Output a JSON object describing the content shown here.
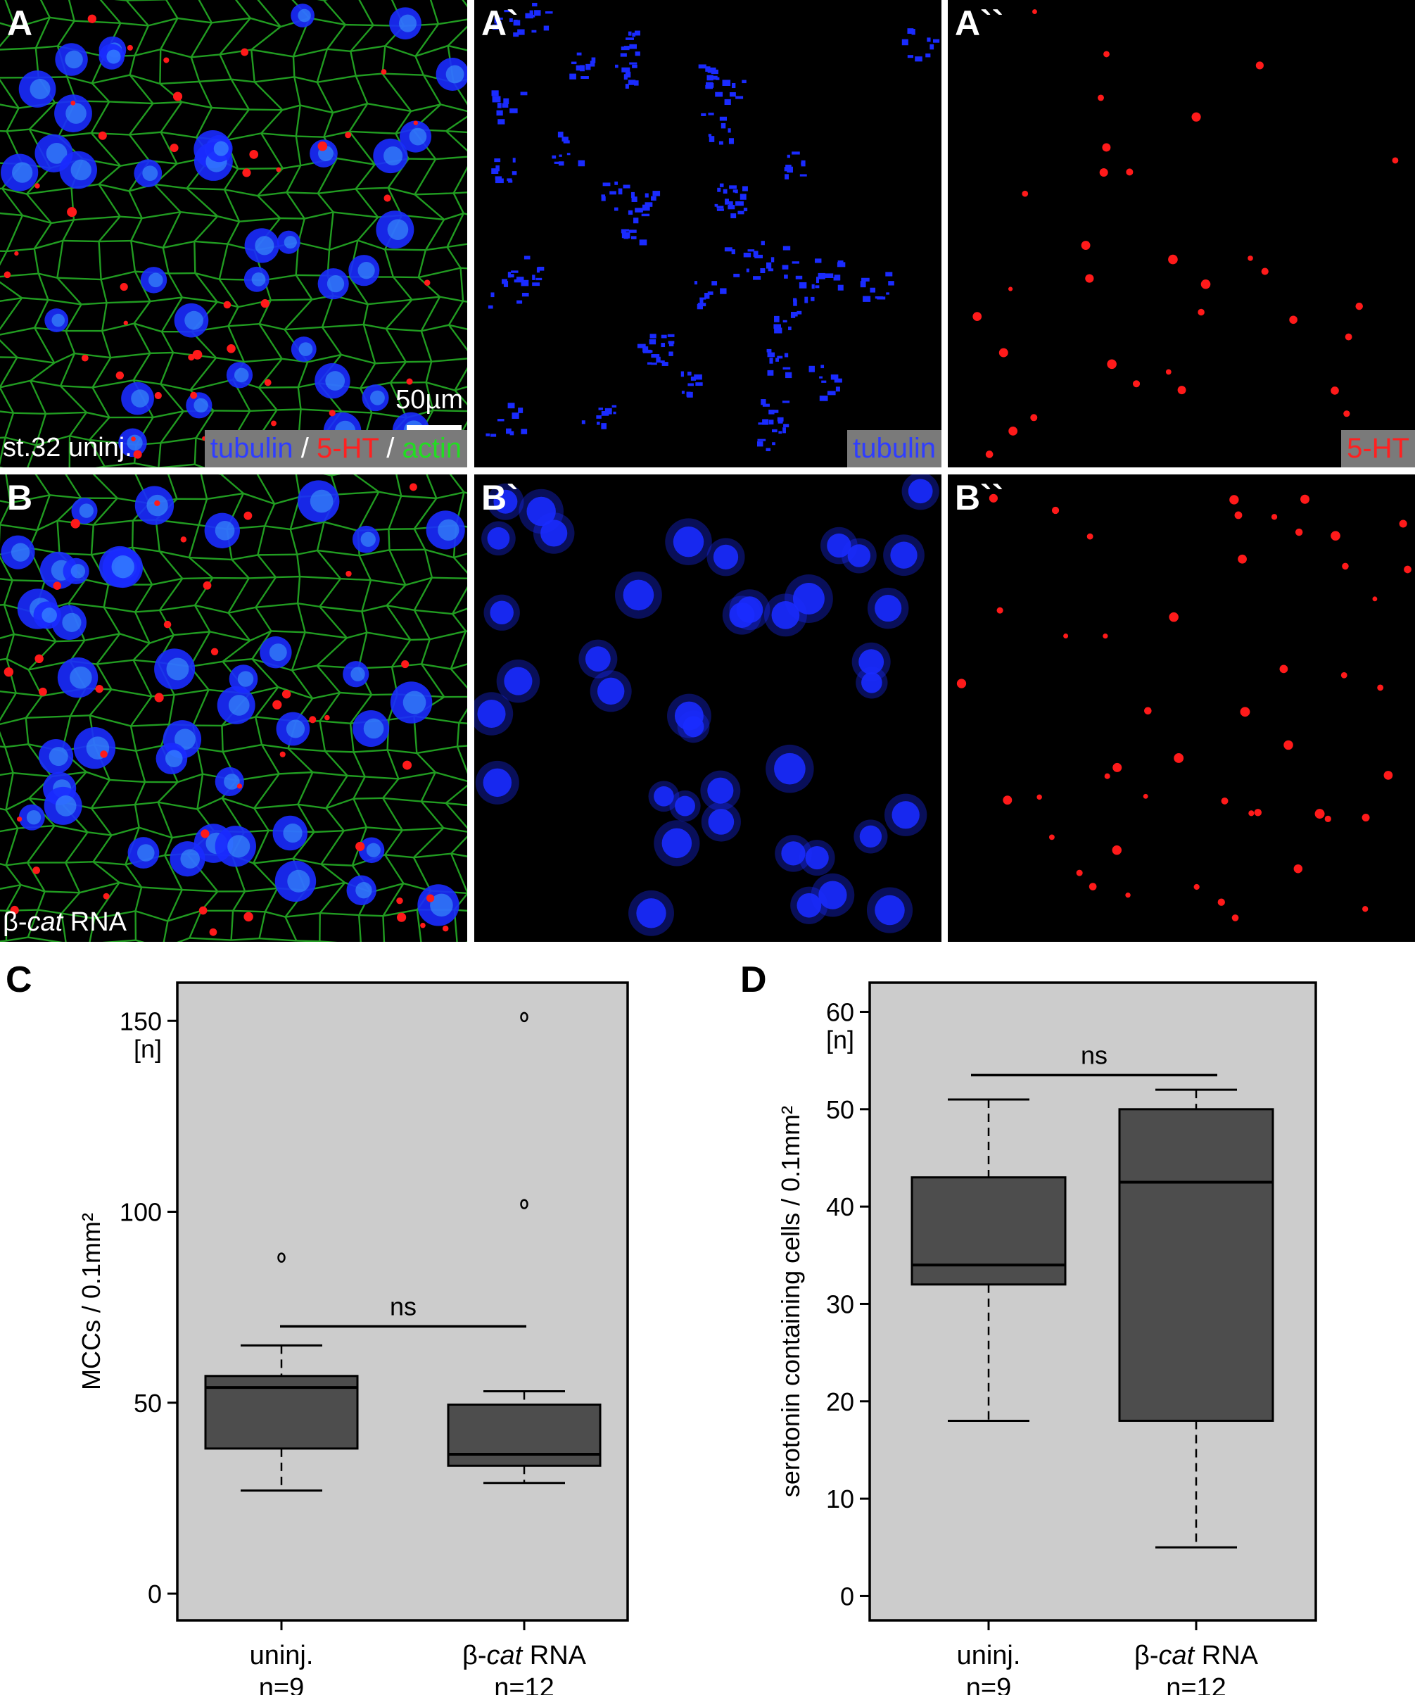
{
  "panels": {
    "A": {
      "label": "A",
      "caption": "st.32 uninj.",
      "channels": [
        {
          "text": "tubulin",
          "color": "#2f3dff"
        },
        {
          "text": " / ",
          "color": "#ffffff"
        },
        {
          "text": "5-HT",
          "color": "#ff2020"
        },
        {
          "text": " / ",
          "color": "#ffffff"
        },
        {
          "text": "actin",
          "color": "#22dd22"
        }
      ],
      "scale": "50µm"
    },
    "A1": {
      "label": "A`",
      "channel": "tubulin",
      "channel_color": "#2f3dff"
    },
    "A2": {
      "label": "A``",
      "channel": "5-HT",
      "channel_color": "#ff2020"
    },
    "B": {
      "label": "B",
      "caption_prefix": "β-",
      "caption_italic": "cat",
      "caption_suffix": " RNA"
    },
    "B1": {
      "label": "B`"
    },
    "B2": {
      "label": "B``"
    }
  },
  "colors": {
    "plot_bg": "#cccccc",
    "box_fill": "#4d4d4d",
    "tubulin": "#1a2bff",
    "serotonin": "#ff1a1a",
    "actin": "#27b827"
  },
  "chart_data": [
    {
      "panel": "C",
      "type": "boxplot",
      "ylabel": "MCCs / 0.1mm²",
      "yunit": "[n]",
      "ylim": [
        -7,
        160
      ],
      "yticks": [
        0,
        50,
        100,
        150
      ],
      "categories": [
        {
          "name_prefix": "uninj.",
          "name_italic": "",
          "name_suffix": "",
          "n": "n=9"
        },
        {
          "name_prefix": "β-",
          "name_italic": "cat",
          "name_suffix": " RNA",
          "n": "n=12"
        }
      ],
      "boxes": [
        {
          "whisker_low": 27,
          "q1": 38,
          "median": 54,
          "q3": 57,
          "whisker_high": 65,
          "outliers": [
            88
          ]
        },
        {
          "whisker_low": 29,
          "q1": 33.5,
          "median": 36.5,
          "q3": 49.5,
          "whisker_high": 53,
          "outliers": [
            102,
            151
          ]
        }
      ],
      "significance": {
        "text": "ns",
        "y": 70
      }
    },
    {
      "panel": "D",
      "type": "boxplot",
      "ylabel": "serotonin containing cells / 0.1mm²",
      "yunit": "[n]",
      "ylim": [
        -2.5,
        63
      ],
      "yticks": [
        0,
        10,
        20,
        30,
        40,
        50,
        60
      ],
      "categories": [
        {
          "name_prefix": "uninj.",
          "name_italic": "",
          "name_suffix": "",
          "n": "n=9"
        },
        {
          "name_prefix": "β-",
          "name_italic": "cat",
          "name_suffix": " RNA",
          "n": "n=12"
        }
      ],
      "boxes": [
        {
          "whisker_low": 18,
          "q1": 32,
          "median": 34,
          "q3": 43,
          "whisker_high": 51,
          "outliers": []
        },
        {
          "whisker_low": 5,
          "q1": 18,
          "median": 42.5,
          "q3": 50,
          "whisker_high": 52,
          "outliers": []
        }
      ],
      "significance": {
        "text": "ns",
        "y": 53.5
      }
    }
  ]
}
